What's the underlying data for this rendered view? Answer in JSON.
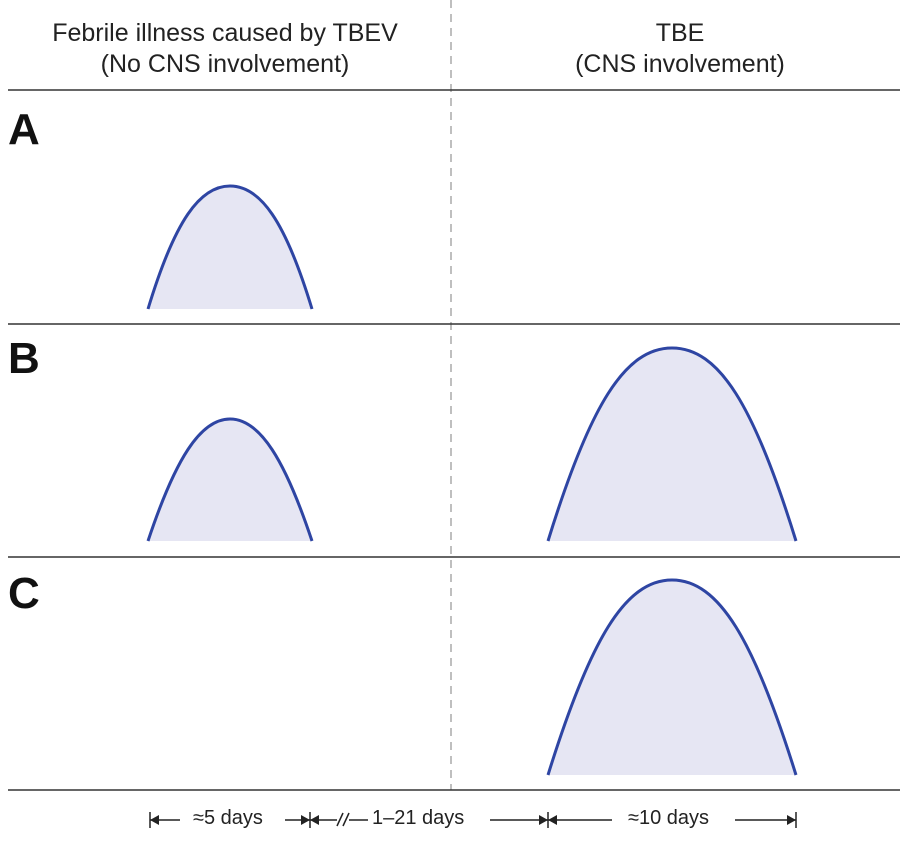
{
  "headers": {
    "left_line1": "Febrile illness caused by TBEV",
    "left_line2": "(No CNS involvement)",
    "right_line1": "TBE",
    "right_line2": "(CNS involvement)"
  },
  "panels": [
    {
      "label": "A",
      "curves": [
        "febrile"
      ]
    },
    {
      "label": "B",
      "curves": [
        "febrile",
        "tbe"
      ]
    },
    {
      "label": "C",
      "curves": [
        "tbe"
      ]
    }
  ],
  "timeline": {
    "segment1": "≈5 days",
    "segment2": "1–21 days",
    "segment3": "≈10 days"
  },
  "colors": {
    "curve_stroke": "#2e45a3",
    "curve_fill": "#e6e6f3",
    "rule": "#333333",
    "divider": "#aaaaaa"
  }
}
